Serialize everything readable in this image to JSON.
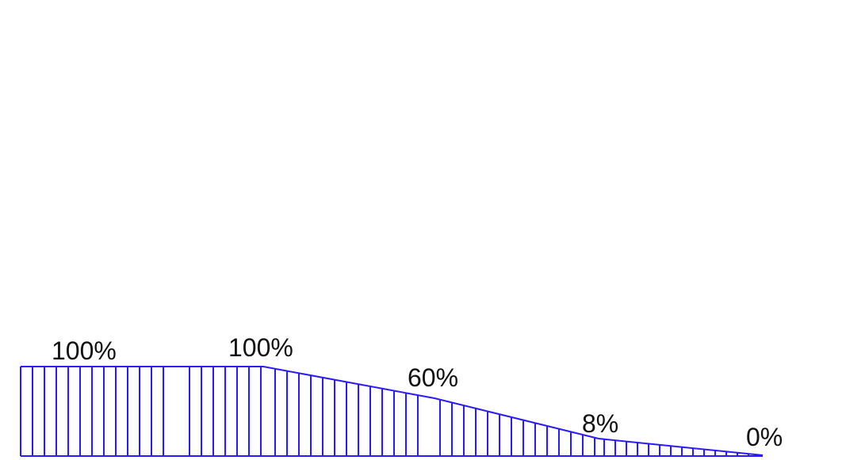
{
  "labels": {
    "p1": "100%",
    "p2": "100%",
    "p3": "60%",
    "p4": "8%",
    "p5": "0%"
  },
  "profile": {
    "segments": [
      {
        "from_value": 100,
        "to_value": 100
      },
      {
        "from_value": 100,
        "to_value": 60
      },
      {
        "from_value": 60,
        "to_value": 8
      },
      {
        "from_value": 8,
        "to_value": 0
      }
    ]
  },
  "colors": {
    "line": "#2a1aff",
    "text": "#111111"
  }
}
